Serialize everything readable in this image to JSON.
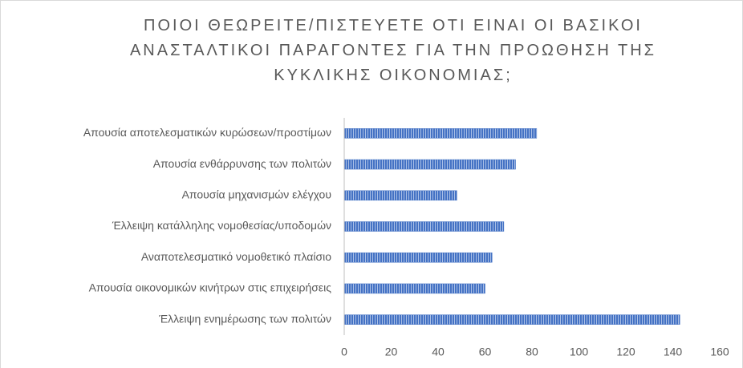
{
  "chart_data": {
    "type": "hbar",
    "title": "ΠΟΙΟΙ ΘΕΩΡΕΙΤΕ/ΠΙΣΤΕΥΕΤΕ ΟΤΙ ΕΙΝΑΙ ΟΙ ΒΑΣΙΚΟΙ ΑΝΑΣΤΑΛΤΙΚΟΙ ΠΑΡΑΓΟΝΤΕΣ ΓΙΑ ΤΗΝ ΠΡΟΩΘΗΣΗ ΤΗΣ ΚΥΚΛΙΚΗΣ ΟΙΚΟΝΟΜΙΑΣ;",
    "categories": [
      "Απουσία αποτελεσματικών κυρώσεων/προστίμων",
      "Απουσία ενθάρρυνσης των πολιτών",
      "Απουσία μηχανισμών ελέγχου",
      "Έλλειψη κατάλληλης νομοθεσίας/υποδομών",
      "Αναποτελεσματικό νομοθετικό πλαίσιο",
      "Απουσία οικονομικών κινήτρων στις επιχειρήσεις",
      "Έλλειψη ενημέρωσης των πολιτών"
    ],
    "values": [
      82,
      73,
      48,
      68,
      63,
      60,
      143
    ],
    "color": "#4472c4",
    "xlim": [
      0,
      160
    ],
    "xticks": [
      0,
      20,
      40,
      60,
      80,
      100,
      120,
      140,
      160
    ],
    "grid": false
  }
}
